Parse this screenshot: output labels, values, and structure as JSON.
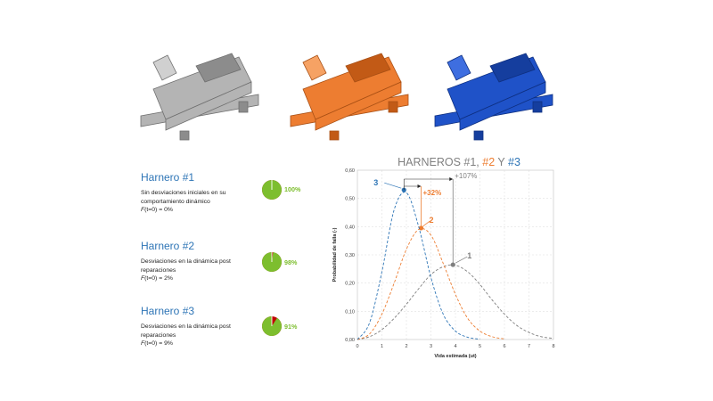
{
  "machines": [
    {
      "name": "harnero-1",
      "color": "#A6A6A6"
    },
    {
      "name": "harnero-2",
      "color": "#ED7D31"
    },
    {
      "name": "harnero-3",
      "color": "#1F52C8"
    }
  ],
  "harneros": [
    {
      "title": "Harnero #1",
      "desc": "Sin desviaciones iniciales en su comportamiento dinámico",
      "f_prefix": "F",
      "f_text": "(t=0) = 0%",
      "reliability": 100,
      "reliability_label": "100%"
    },
    {
      "title": "Harnero #2",
      "desc": "Desviaciones en la dinámica post reparaciones",
      "f_prefix": "F",
      "f_text": "(t=0) = 2%",
      "reliability": 98,
      "reliability_label": "98%"
    },
    {
      "title": "Harnero #3",
      "desc": "Desviaciones en la dinámica post reparaciones",
      "f_prefix": "F",
      "f_text": "(t=0) = 9%",
      "reliability": 91,
      "reliability_label": "91%"
    }
  ],
  "colors": {
    "green": "#7DBE2E",
    "red": "#C00000",
    "gray": "#7F7F7F",
    "orange": "#ED7D31",
    "blue": "#2E75B6"
  },
  "chart_title": {
    "p1": "HARNEROS #1, ",
    "p2": "#2",
    "p3": " Y ",
    "p4": "#3"
  },
  "chart_data": {
    "type": "line",
    "xlabel": "Vida estimada (ut)",
    "ylabel": "Probabilidad de falla (-)",
    "xlim": [
      0,
      8
    ],
    "ylim": [
      0,
      0.6
    ],
    "xticks": [
      "0",
      "1",
      "2",
      "3",
      "4",
      "5",
      "6",
      "7",
      "8"
    ],
    "yticks": [
      "0,00",
      "0,10",
      "0,20",
      "0,30",
      "0,40",
      "0,50",
      "0,60"
    ],
    "grid": true,
    "series": [
      {
        "id": "1",
        "name": "1",
        "color": "#7F7F7F",
        "peak": [
          3.9,
          0.265
        ],
        "x": [
          0,
          0.5,
          1,
          1.5,
          2,
          2.5,
          3,
          3.5,
          4,
          4.5,
          5,
          5.5,
          6,
          6.5,
          7,
          7.5,
          8
        ],
        "y": [
          0,
          0.01,
          0.035,
          0.075,
          0.125,
          0.18,
          0.23,
          0.258,
          0.263,
          0.24,
          0.195,
          0.14,
          0.09,
          0.05,
          0.025,
          0.01,
          0.004
        ]
      },
      {
        "id": "2",
        "name": "2",
        "color": "#ED7D31",
        "peak": [
          2.6,
          0.395
        ],
        "x": [
          0,
          0.5,
          1,
          1.5,
          2,
          2.5,
          3,
          3.5,
          4,
          4.5,
          5,
          5.5,
          6
        ],
        "y": [
          0,
          0.02,
          0.09,
          0.2,
          0.32,
          0.39,
          0.37,
          0.27,
          0.16,
          0.075,
          0.03,
          0.01,
          0.002
        ]
      },
      {
        "id": "3",
        "name": "3",
        "color": "#2E75B6",
        "peak": [
          1.9,
          0.53
        ],
        "x": [
          0,
          0.5,
          1,
          1.5,
          2,
          2.5,
          3,
          3.5,
          4,
          4.5,
          5
        ],
        "y": [
          0,
          0.06,
          0.24,
          0.46,
          0.52,
          0.4,
          0.22,
          0.09,
          0.03,
          0.008,
          0.001
        ]
      }
    ],
    "annotations": [
      {
        "from": "3",
        "to": "2",
        "text": "+32%",
        "color": "#ED7D31"
      },
      {
        "from": "3",
        "to": "1",
        "text": "+107%",
        "color": "#7F7F7F"
      }
    ]
  }
}
